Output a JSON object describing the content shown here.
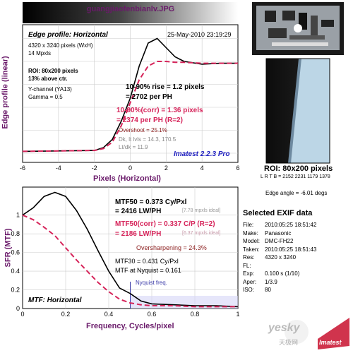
{
  "file_title": "guangjiaofenbianlv.JPG",
  "edge_chart": {
    "title": "Edge profile: Horizontal",
    "date": "25-May-2010 23:19:29",
    "info": [
      "4320 x 3240 pixels (WxH)",
      "14 Mpxls"
    ],
    "roi_lines": [
      "ROI: 80x200 pixels",
      "13% above ctr."
    ],
    "channel_lines": [
      "Y-channel  (YA13)",
      "Gamma = 0.5"
    ],
    "rise_lines": [
      "10-90% rise = 1.2 pixels",
      "= 2702 per PH"
    ],
    "corr_lines": [
      "10-90%(corr) = 1.36 pixels",
      "= 2374 per PH  (R=2)"
    ],
    "overshoot": "Overshoot = 25.1%",
    "dk": "Dk, lt lvls = 14.3, 170.5",
    "ltdk": "Lt/dk = 11.9",
    "brand": "Imatest 2.2.3 Pro",
    "xlabel": "Pixels (Horizontal)",
    "ylabel": "Edge profile (linear)"
  },
  "mtf_chart": {
    "mtf50": "MTF50 = 0.373 Cy/Pxl",
    "mtf50_lwph": "= 2416 LW/PH",
    "mpxl_ideal": "[7.78 mpxls ideal]",
    "mtf50corr": "MTF50(corr) = 0.337 C/P  (R=2)",
    "mtf50corr_lwph": "= 2186 LW/PH",
    "mpxl_ideal2": "[6.37 mpxls ideal]",
    "oversharp": "Oversharpening = 24.3%",
    "mtf30": "MTF30 = 0.431 Cy/Pxl",
    "nyq_mtf": "MTF at Nyquist = 0.161",
    "nyquist_label": "Nyquist freq.",
    "title": "MTF: Horizontal",
    "xlabel": "Frequency, Cycles/pixel",
    "ylabel": "SFR (MTF)"
  },
  "roi_panel": {
    "label": "ROI: 80x200 pixels",
    "lrtb": "L R  T B = 2152 2231   1179 1378",
    "edge_angle": "Edge angle = -6.01 degs"
  },
  "exif": {
    "title": "Selected EXIF data",
    "rows": [
      {
        "k": "File:",
        "v": "2010:05:25 18:51:42"
      },
      {
        "k": "Make:",
        "v": "Panasonic"
      },
      {
        "k": "Model:",
        "v": "DMC-FH22"
      },
      {
        "k": "Taken:",
        "v": "2010:05:25 18:51:43"
      },
      {
        "k": "Res:",
        "v": "4320 x 3240"
      },
      {
        "k": "FL:",
        "v": ""
      },
      {
        "k": "Exp:",
        "v": "0.100 s  (1/10)"
      },
      {
        "k": "Aper:",
        "v": "1/3.9"
      },
      {
        "k": "ISO:",
        "v": "80"
      }
    ]
  },
  "watermark": {
    "yesky": "yesky",
    "cn": "天极网",
    "logo": "Imatest"
  },
  "colors": {
    "black_curve": "#000000",
    "corr_curve": "#d6245a",
    "title_purple": "#6a1a6a",
    "nyquist_blue": "#3a3aa8"
  },
  "chart_data": [
    {
      "type": "line",
      "title": "Edge profile: Horizontal",
      "xlabel": "Pixels (Horizontal)",
      "ylabel": "Edge profile (linear)",
      "xlim": [
        -6,
        6
      ],
      "x_ticks": [
        -6,
        -4,
        -2,
        0,
        2,
        4,
        6
      ],
      "grid": true,
      "series": [
        {
          "x": [
            -6,
            -2,
            -1.5,
            -1,
            -0.5,
            0,
            0.5,
            1,
            1.5,
            2,
            2.5,
            3,
            4,
            5,
            6
          ],
          "y": [
            0.02,
            0.03,
            0.06,
            0.15,
            0.35,
            0.6,
            0.95,
            1.2,
            1.25,
            1.15,
            1.05,
            1.0,
            0.97,
            0.98,
            0.98
          ]
        },
        {
          "x": [
            -6,
            -2,
            -1.5,
            -1,
            -0.5,
            0,
            0.5,
            1,
            1.5,
            2,
            2.5,
            3,
            4,
            5,
            6
          ],
          "y": [
            0.02,
            0.03,
            0.05,
            0.12,
            0.3,
            0.55,
            0.8,
            0.95,
            1.0,
            1.0,
            0.99,
            0.99,
            0.98,
            0.98,
            0.98
          ]
        }
      ]
    },
    {
      "type": "line",
      "title": "MTF: Horizontal",
      "xlabel": "Frequency, Cycles/pixel",
      "ylabel": "SFR (MTF)",
      "xlim": [
        0,
        1
      ],
      "ylim": [
        0,
        1.3
      ],
      "x_ticks": [
        0,
        0.2,
        0.4,
        0.6,
        0.8,
        1
      ],
      "y_ticks": [
        0,
        0.2,
        0.4,
        0.6,
        0.8,
        1
      ],
      "grid": true,
      "series": [
        {
          "x": [
            0,
            0.05,
            0.1,
            0.15,
            0.2,
            0.25,
            0.3,
            0.35,
            0.4,
            0.45,
            0.5,
            0.55,
            0.6,
            0.7,
            0.8,
            0.9,
            1.0
          ],
          "y": [
            1.0,
            1.08,
            1.2,
            1.243,
            1.2,
            1.05,
            0.85,
            0.62,
            0.4,
            0.22,
            0.16,
            0.08,
            0.05,
            0.04,
            0.03,
            0.03,
            0.02
          ]
        },
        {
          "x": [
            0,
            0.05,
            0.1,
            0.15,
            0.2,
            0.25,
            0.3,
            0.35,
            0.4,
            0.45,
            0.5,
            0.55,
            0.6,
            0.7,
            0.8,
            0.9,
            1.0
          ],
          "y": [
            1.0,
            0.95,
            0.87,
            0.78,
            0.65,
            0.52,
            0.4,
            0.28,
            0.18,
            0.1,
            0.06,
            0.04,
            0.03,
            0.03,
            0.02,
            0.02,
            0.02
          ]
        }
      ],
      "nyquist": 0.5
    }
  ]
}
